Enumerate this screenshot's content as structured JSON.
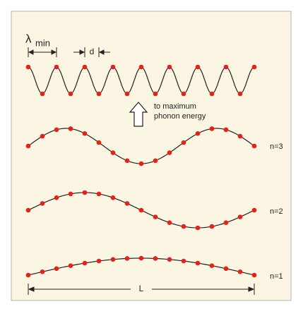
{
  "lambda": {
    "symbol": "λ",
    "subscript": "min"
  },
  "spacing_label": "d",
  "arrow_text": [
    "to maximum",
    "phonon energy"
  ],
  "modes": [
    "n=3",
    "n=2",
    "n=1"
  ],
  "length_label": "L"
}
